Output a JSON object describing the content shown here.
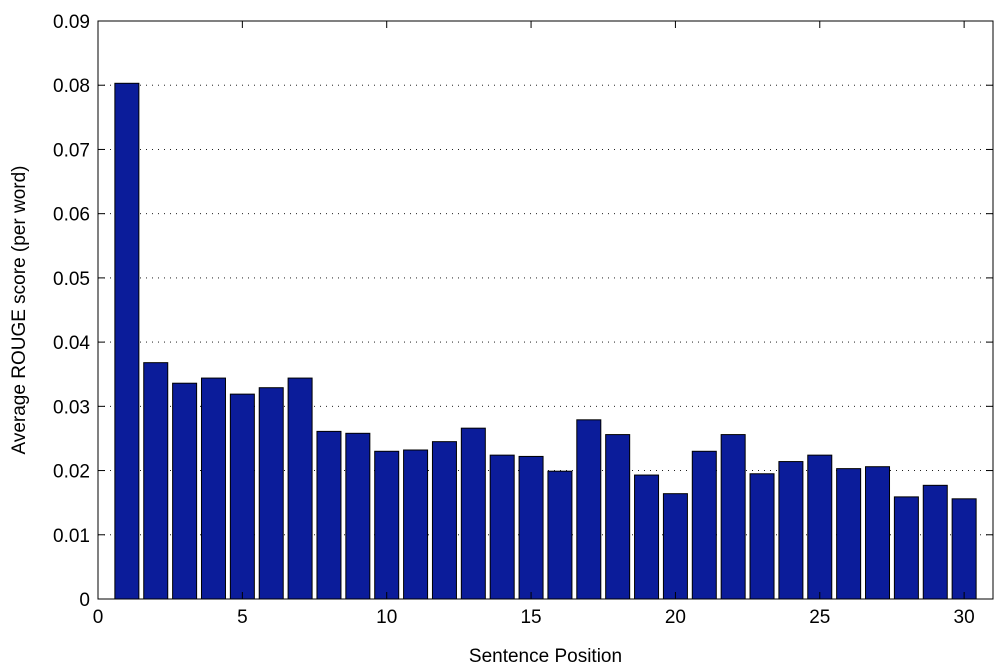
{
  "chart_data": {
    "type": "bar",
    "title": "",
    "xlabel": "Sentence Position",
    "ylabel": "Average ROUGE score (per word)",
    "x": [
      1,
      2,
      3,
      4,
      5,
      6,
      7,
      8,
      9,
      10,
      11,
      12,
      13,
      14,
      15,
      16,
      17,
      18,
      19,
      20,
      21,
      22,
      23,
      24,
      25,
      26,
      27,
      28,
      29,
      30
    ],
    "values": [
      0.0803,
      0.0368,
      0.0336,
      0.0344,
      0.0319,
      0.0329,
      0.0344,
      0.0261,
      0.0258,
      0.023,
      0.0232,
      0.0245,
      0.0266,
      0.0224,
      0.0222,
      0.0199,
      0.0279,
      0.0256,
      0.0193,
      0.0164,
      0.023,
      0.0256,
      0.0195,
      0.0214,
      0.0224,
      0.0203,
      0.0206,
      0.0159,
      0.0177,
      0.0156
    ],
    "xlim": [
      0,
      31
    ],
    "ylim": [
      0,
      0.09
    ],
    "xticks": [
      "0",
      "5",
      "10",
      "15",
      "20",
      "25",
      "30"
    ],
    "xtick_values": [
      0,
      5,
      10,
      15,
      20,
      25,
      30
    ],
    "yticks": [
      "0",
      "0.01",
      "0.02",
      "0.03",
      "0.04",
      "0.05",
      "0.06",
      "0.07",
      "0.08",
      "0.09"
    ],
    "ytick_values": [
      0,
      0.01,
      0.02,
      0.03,
      0.04,
      0.05,
      0.06,
      0.07,
      0.08,
      0.09
    ],
    "grid": "horizontal dotted",
    "bar_color": "#0b1c9a"
  }
}
